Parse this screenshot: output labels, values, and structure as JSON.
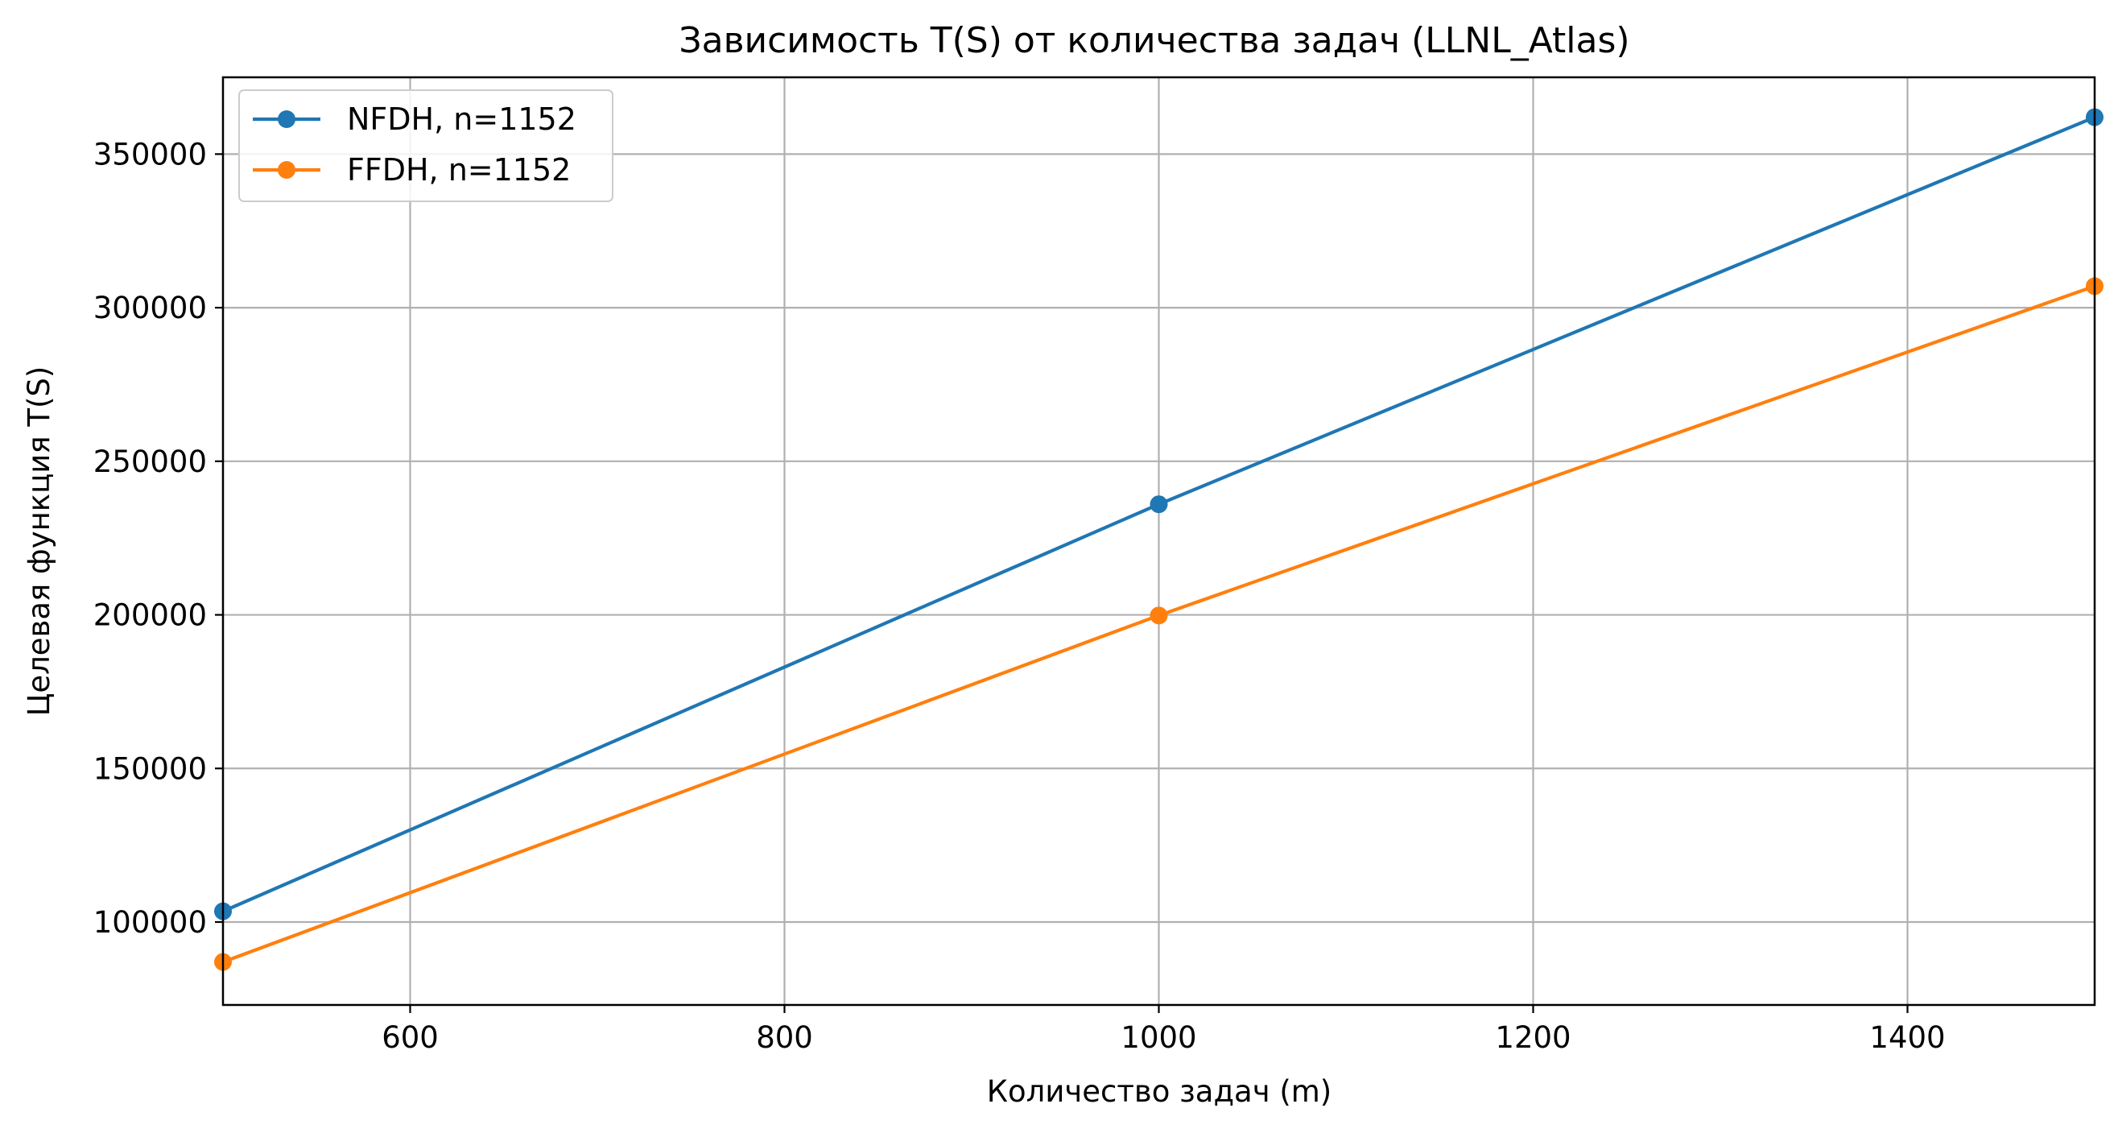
{
  "chart_data": {
    "type": "line",
    "title": "Зависимость T(S) от количества задач  (LLNL_Atlas)",
    "xlabel": "Количество задач (m)",
    "ylabel": "Целевая функция T(S)",
    "xlim": [
      500,
      1500
    ],
    "ylim": [
      73000,
      375000
    ],
    "x_ticks": [
      600,
      800,
      1000,
      1200,
      1400
    ],
    "y_ticks": [
      100000,
      150000,
      200000,
      250000,
      300000,
      350000
    ],
    "grid": true,
    "legend_position": "top-left",
    "x": [
      500,
      1000,
      1500
    ],
    "series": [
      {
        "name": "NFDH, n=1152",
        "color": "#1f77b4",
        "marker": "circle",
        "values": [
          103500,
          236000,
          362000
        ]
      },
      {
        "name": "FFDH, n=1152",
        "color": "#ff7f0e",
        "marker": "circle",
        "values": [
          87000,
          199800,
          307000
        ]
      }
    ]
  }
}
